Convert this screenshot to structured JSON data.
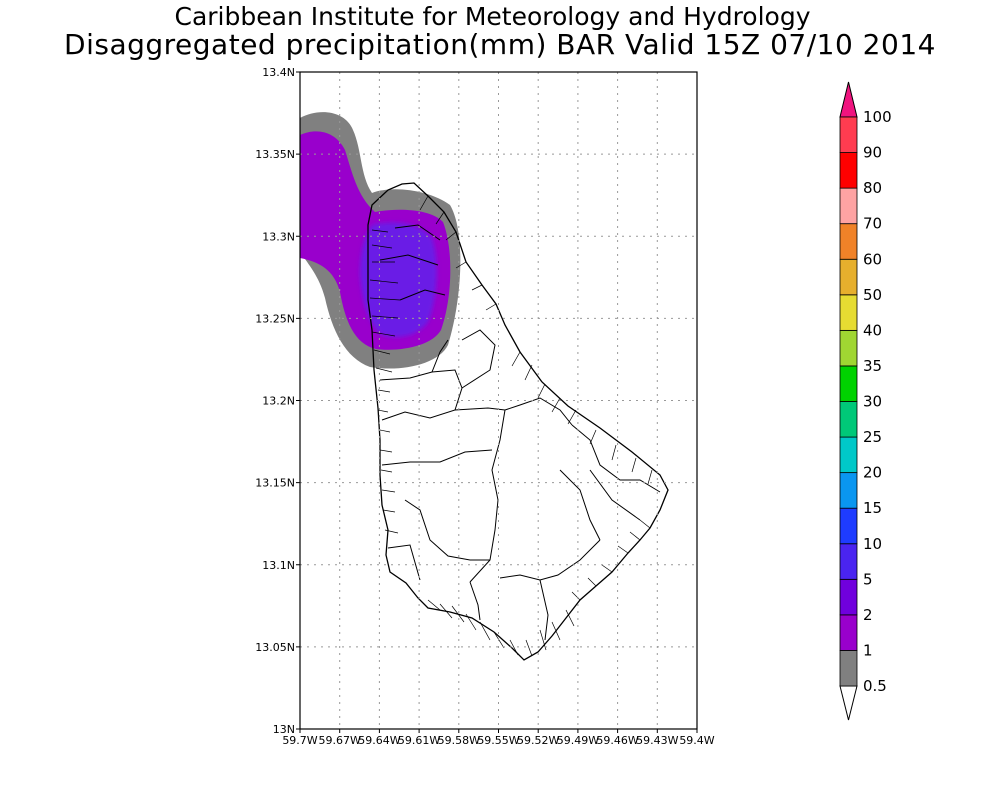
{
  "header": {
    "title": "Caribbean Institute for Meteorology and Hydrology",
    "subtitle": "Disaggregated precipitation(mm) BAR Valid 15Z 07/10 2014"
  },
  "map": {
    "lon_range": [
      -59.7,
      -59.4
    ],
    "lat_range": [
      13.0,
      13.4
    ],
    "x_ticks": [
      {
        "value": -59.7,
        "label": "59.7W"
      },
      {
        "value": -59.67,
        "label": "59.67W"
      },
      {
        "value": -59.64,
        "label": "59.64W"
      },
      {
        "value": -59.61,
        "label": "59.61W"
      },
      {
        "value": -59.58,
        "label": "59.58W"
      },
      {
        "value": -59.55,
        "label": "59.55W"
      },
      {
        "value": -59.52,
        "label": "59.52W"
      },
      {
        "value": -59.49,
        "label": "59.49W"
      },
      {
        "value": -59.46,
        "label": "59.46W"
      },
      {
        "value": -59.43,
        "label": "59.43W"
      },
      {
        "value": -59.4,
        "label": "59.4W"
      }
    ],
    "y_ticks": [
      {
        "value": 13.4,
        "label": "13.4N"
      },
      {
        "value": 13.35,
        "label": "13.35N"
      },
      {
        "value": 13.3,
        "label": "13.3N"
      },
      {
        "value": 13.25,
        "label": "13.25N"
      },
      {
        "value": 13.2,
        "label": "13.2N"
      },
      {
        "value": 13.15,
        "label": "13.15N"
      },
      {
        "value": 13.1,
        "label": "13.1N"
      },
      {
        "value": 13.05,
        "label": "13.05N"
      },
      {
        "value": 13.0,
        "label": "13N"
      }
    ],
    "grid": true,
    "colors": {
      "grey": "#808080",
      "purple": "#9900cc",
      "blue_violet": "#6a1ae6"
    }
  },
  "colorbar": {
    "levels": [
      {
        "label": "0.5",
        "color": "#ffffff"
      },
      {
        "label": "1",
        "color": "#808080"
      },
      {
        "label": "2",
        "color": "#9900cc"
      },
      {
        "label": "5",
        "color": "#7000dd"
      },
      {
        "label": "10",
        "color": "#4a24f0"
      },
      {
        "label": "15",
        "color": "#1e3cff"
      },
      {
        "label": "20",
        "color": "#0a96f0"
      },
      {
        "label": "25",
        "color": "#00c8c8"
      },
      {
        "label": "30",
        "color": "#00c878"
      },
      {
        "label": "35",
        "color": "#00d200"
      },
      {
        "label": "40",
        "color": "#a0d632"
      },
      {
        "label": "50",
        "color": "#e6dc32"
      },
      {
        "label": "60",
        "color": "#e6af2d"
      },
      {
        "label": "70",
        "color": "#f08228"
      },
      {
        "label": "80",
        "color": "#fea3a3"
      },
      {
        "label": "90",
        "color": "#ff0000"
      },
      {
        "label": "100",
        "color": "#ff3c50"
      }
    ],
    "top_arrow_color": "#f0147f"
  }
}
